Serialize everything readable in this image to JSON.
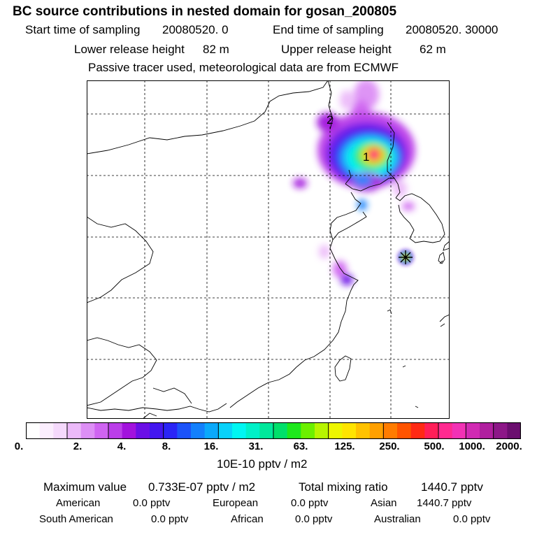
{
  "title": "BC  source contributions in nested domain for gosan_200805",
  "sampling": {
    "start_label": "Start time of sampling",
    "start_value": "20080520.      0",
    "end_label": "End time of sampling",
    "end_value": "20080520. 30000"
  },
  "release": {
    "lower_label": "Lower release height",
    "lower_value": "82 m",
    "upper_label": "Upper release height",
    "upper_value": "62 m"
  },
  "note": "Passive tracer used, meteorological data are from ECMWF",
  "map": {
    "markers": [
      "1",
      "2"
    ],
    "receptor_icon": "star-marker-icon"
  },
  "colorbar": {
    "colors": [
      "#ffffff",
      "#fbeefe",
      "#f5d9fc",
      "#ecbaf9",
      "#dd8ff5",
      "#cf64f1",
      "#bb3ee9",
      "#a212dd",
      "#6b0fe6",
      "#4316ef",
      "#2a25f6",
      "#1c53f9",
      "#1380fc",
      "#0aa9fb",
      "#08d2fa",
      "#00f6f2",
      "#00f0c8",
      "#00e89b",
      "#00e06b",
      "#1ee81c",
      "#6cf000",
      "#b8f400",
      "#eef600",
      "#ffe400",
      "#ffc200",
      "#ffa000",
      "#ff7c00",
      "#ff5400",
      "#ff2a14",
      "#ff1e58",
      "#ff2a90",
      "#f232b5",
      "#d12ab3",
      "#b01f9f",
      "#8d1788",
      "#6b0e6f"
    ],
    "groups": [
      3,
      3,
      4,
      4,
      4,
      4,
      4,
      4,
      2,
      2,
      2
    ],
    "tick_labels": [
      "0.",
      "2.",
      "4.",
      "8.",
      "16.",
      "31.",
      "63.",
      "125.",
      "250.",
      "500.",
      "1000.",
      "2000."
    ],
    "unit_label": "10E-10 pptv / m2"
  },
  "stats": {
    "max_label": "Maximum value",
    "max_value": "0.733E-07 pptv / m2",
    "total_label": "Total mixing ratio",
    "total_value": "1440.7 pptv",
    "regions": [
      {
        "name": "American",
        "value": "0.0 pptv"
      },
      {
        "name": "European",
        "value": "0.0 pptv"
      },
      {
        "name": "Asian",
        "value": "1440.7 pptv"
      },
      {
        "name": "South American",
        "value": "0.0 pptv"
      },
      {
        "name": "African",
        "value": "0.0 pptv"
      },
      {
        "name": "Australian",
        "value": "0.0 pptv"
      }
    ]
  }
}
